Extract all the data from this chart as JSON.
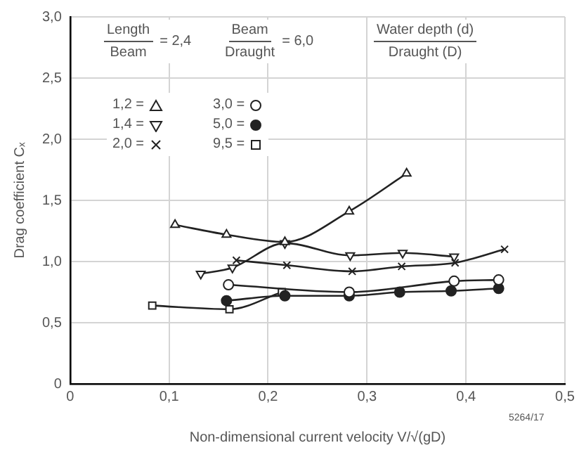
{
  "chart_data": {
    "type": "line",
    "xlabel": "Non-dimensional current velocity V/√(gD)",
    "ylabel": "Drag coefficient Cₓ",
    "annotations": [
      "Length",
      "Beam",
      "= 2,4",
      "Beam",
      "Draught",
      "= 6,0",
      "Water depth (d)",
      "Draught (D)",
      "5264/17"
    ],
    "xlim": [
      0,
      0.5
    ],
    "xticks": [
      {
        "value": 0,
        "label": "0"
      },
      {
        "value": 0.1,
        "label": "0,1"
      },
      {
        "value": 0.2,
        "label": "0,2"
      },
      {
        "value": 0.3,
        "label": "0,3"
      },
      {
        "value": 0.4,
        "label": "0,4"
      },
      {
        "value": 0.5,
        "label": "0,5"
      }
    ],
    "ylim": [
      0,
      3
    ],
    "yticks": [
      {
        "value": 0,
        "label": "0"
      },
      {
        "value": 0.5,
        "label": "0,5"
      },
      {
        "value": 1,
        "label": "1,0"
      },
      {
        "value": 1.5,
        "label": "1,5"
      },
      {
        "value": 2,
        "label": "2,0"
      },
      {
        "value": 2.5,
        "label": "2,5"
      },
      {
        "value": 3,
        "label": "3,0"
      }
    ],
    "grid": true,
    "legend": "top left",
    "series": [
      {
        "name": "1,2 =",
        "color": "#222222",
        "marker": "triangle",
        "x": [
          0.106,
          0.158,
          0.217,
          0.282,
          0.34
        ],
        "values": [
          1.3,
          1.22,
          1.16,
          1.41,
          1.72
        ]
      },
      {
        "name": "1,4 =",
        "color": "#222222",
        "marker": "triangle-down",
        "x": [
          0.132,
          0.164,
          0.217,
          0.283,
          0.336,
          0.388
        ],
        "values": [
          0.9,
          0.95,
          1.15,
          1.05,
          1.07,
          1.04
        ]
      },
      {
        "name": "2,0 =",
        "color": "#222222",
        "marker": "cross",
        "x": [
          0.168,
          0.219,
          0.285,
          0.335,
          0.389,
          0.439
        ],
        "values": [
          1.01,
          0.97,
          0.92,
          0.96,
          0.99,
          1.1
        ]
      },
      {
        "name": "3,0 =",
        "color": "#222222",
        "marker": "circle",
        "x": [
          0.16,
          0.282,
          0.388,
          0.433
        ],
        "values": [
          0.81,
          0.75,
          0.84,
          0.85
        ]
      },
      {
        "name": "5,0 =",
        "color": "#222222",
        "marker": "circle-filled",
        "x": [
          0.158,
          0.217,
          0.282,
          0.333,
          0.385,
          0.433
        ],
        "values": [
          0.68,
          0.72,
          0.72,
          0.75,
          0.76,
          0.78
        ]
      },
      {
        "name": "9,5 =",
        "color": "#222222",
        "marker": "square",
        "x": [
          0.083,
          0.161,
          0.214
        ],
        "values": [
          0.64,
          0.61,
          0.75
        ]
      }
    ]
  }
}
